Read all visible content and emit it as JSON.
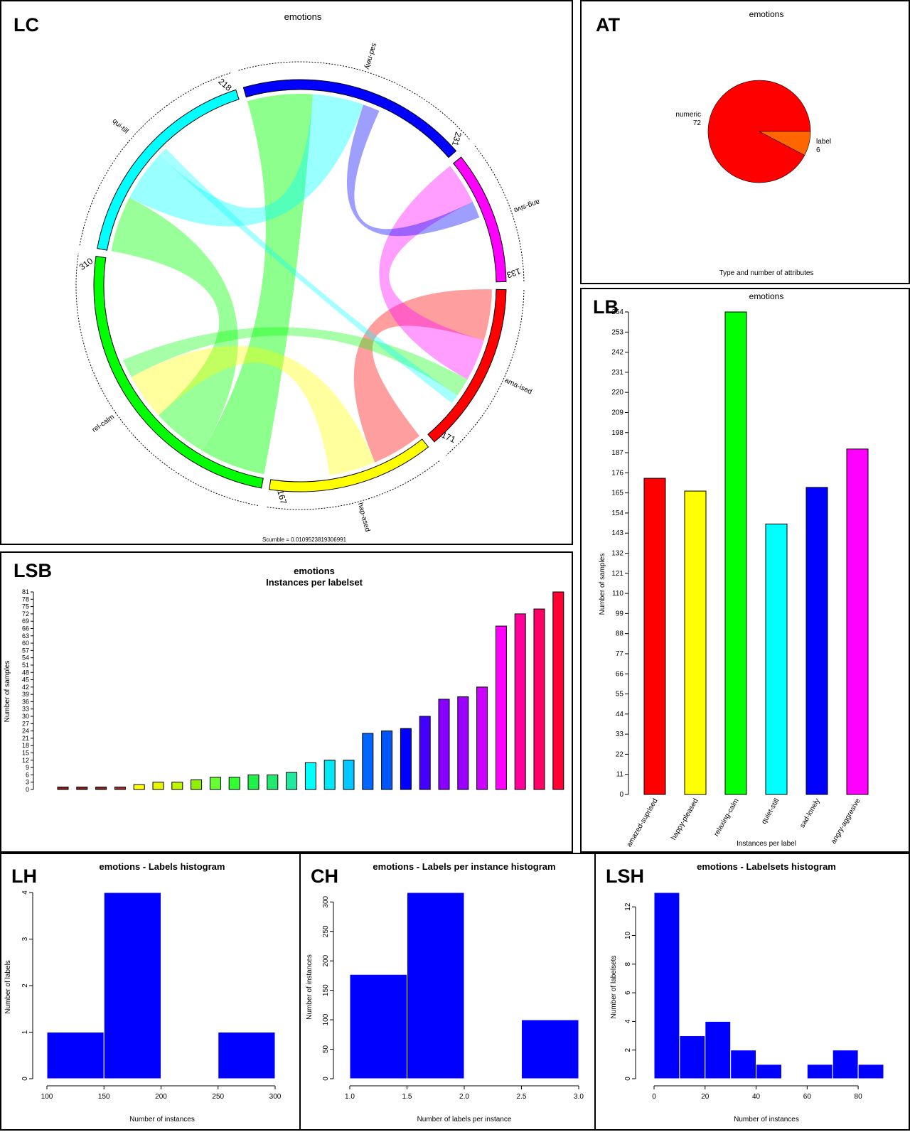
{
  "panels": {
    "lc": {
      "tag": "LC",
      "title": "emotions",
      "footer": "Scumble = 0.0109523819306991"
    },
    "at": {
      "tag": "AT",
      "title": "emotions",
      "xlabel": "Type and number of attributes"
    },
    "lb": {
      "tag": "LB",
      "title": "emotions",
      "xlabel": "Instances per label",
      "ylabel": "Number of samples"
    },
    "lsb": {
      "tag": "LSB",
      "title": "emotions",
      "subtitle": "Instances per labelset",
      "ylabel": "Number of samples"
    },
    "lh": {
      "tag": "LH",
      "title": "emotions - Labels histogram",
      "xlabel": "Number of instances",
      "ylabel": "Number of labels"
    },
    "ch": {
      "tag": "CH",
      "title": "emotions - Labels per instance histogram",
      "xlabel": "Number of labels per instance",
      "ylabel": "Number of instances"
    },
    "lsh": {
      "tag": "LSH",
      "title": "emotions - Labelsets histogram",
      "xlabel": "Number of instances",
      "ylabel": "Number of labelsets"
    }
  },
  "colors": {
    "amazed": "#ff0000",
    "happy": "#ffff00",
    "relaxing": "#00ff00",
    "quiet": "#00ffff",
    "sad": "#0000ff",
    "angry": "#ff00ff",
    "hist": "#0000ff"
  },
  "chart_data": [
    {
      "id": "lc",
      "type": "chord",
      "sectors": [
        {
          "label": "ama-ised",
          "total": 171,
          "color": "#ff0000"
        },
        {
          "label": "hap-ased",
          "total": 167,
          "color": "#ffff00"
        },
        {
          "label": "rel-calm",
          "total": 310,
          "color": "#00ff00"
        },
        {
          "label": "qui-till",
          "total": 218,
          "color": "#00ffff"
        },
        {
          "label": "sad-nely",
          "total": 231,
          "color": "#0000ff"
        },
        {
          "label": "ang-sive",
          "total": 133,
          "color": "#ff00ff"
        }
      ]
    },
    {
      "id": "at",
      "type": "pie",
      "slices": [
        {
          "label": "numeric",
          "value": 72,
          "color": "#ff0000"
        },
        {
          "label": "label",
          "value": 6,
          "color": "#ff6600"
        }
      ]
    },
    {
      "id": "lb",
      "type": "bar",
      "categories": [
        "amazed-suprised",
        "happy-pleased",
        "relaxing-calm",
        "quiet-still",
        "sad-lonely",
        "angry-aggresive"
      ],
      "values": [
        173,
        166,
        264,
        148,
        168,
        189
      ],
      "colors": [
        "#ff0000",
        "#ffff00",
        "#00ff00",
        "#00ffff",
        "#0000ff",
        "#ff00ff"
      ],
      "ylim": [
        0,
        264
      ],
      "yticks": [
        0,
        11,
        22,
        33,
        44,
        55,
        66,
        77,
        88,
        99,
        110,
        121,
        132,
        143,
        154,
        165,
        176,
        187,
        198,
        209,
        220,
        231,
        242,
        253,
        264
      ]
    },
    {
      "id": "lsb",
      "type": "bar",
      "values": [
        1,
        1,
        1,
        1,
        2,
        3,
        3,
        4,
        5,
        5,
        6,
        6,
        7,
        11,
        12,
        12,
        23,
        24,
        25,
        30,
        37,
        38,
        42,
        67,
        72,
        74,
        81
      ],
      "colors": [
        "#8b1a1a",
        "#8b1a1a",
        "#8b2222",
        "#a52a2a",
        "#ffff00",
        "#e6f500",
        "#c0f500",
        "#90f000",
        "#66ff33",
        "#33ff33",
        "#22f04a",
        "#22e870",
        "#22e8a0",
        "#00ffff",
        "#00e8f5",
        "#00c8ff",
        "#0066ff",
        "#0055ff",
        "#0000ff",
        "#4400ff",
        "#8800ff",
        "#9900ff",
        "#cc00ff",
        "#ff00ff",
        "#ff0099",
        "#ff0066",
        "#ff0033"
      ],
      "ylim": [
        0,
        81
      ],
      "yticks": [
        0,
        3,
        6,
        9,
        12,
        15,
        18,
        21,
        24,
        27,
        30,
        33,
        36,
        39,
        42,
        45,
        48,
        51,
        54,
        57,
        60,
        63,
        66,
        69,
        72,
        75,
        78,
        81
      ]
    },
    {
      "id": "lh",
      "type": "bar",
      "bins": [
        [
          100,
          150,
          1
        ],
        [
          150,
          200,
          4
        ],
        [
          200,
          250,
          0
        ],
        [
          250,
          300,
          1
        ]
      ],
      "xticks": [
        100,
        150,
        200,
        250,
        300
      ],
      "yticks": [
        0,
        1,
        2,
        3,
        4
      ],
      "ylim": [
        0,
        4
      ]
    },
    {
      "id": "ch",
      "type": "bar",
      "bins": [
        [
          1.0,
          1.5,
          177
        ],
        [
          1.5,
          2.0,
          316
        ],
        [
          2.0,
          2.5,
          0
        ],
        [
          2.5,
          3.0,
          100
        ]
      ],
      "xticks": [
        "1.0",
        "1.5",
        "2.0",
        "2.5",
        "3.0"
      ],
      "yticks": [
        0,
        50,
        100,
        150,
        200,
        250,
        300
      ],
      "ylim": [
        0,
        316
      ]
    },
    {
      "id": "lsh",
      "type": "bar",
      "bins": [
        [
          0,
          10,
          13
        ],
        [
          10,
          20,
          3
        ],
        [
          20,
          30,
          4
        ],
        [
          30,
          40,
          2
        ],
        [
          40,
          50,
          1
        ],
        [
          50,
          60,
          0
        ],
        [
          60,
          70,
          1
        ],
        [
          70,
          80,
          2
        ],
        [
          80,
          90,
          1
        ]
      ],
      "xticks": [
        0,
        20,
        40,
        60,
        80
      ],
      "yticks": [
        0,
        2,
        4,
        6,
        8,
        10,
        12
      ],
      "ylim": [
        0,
        13
      ]
    }
  ]
}
